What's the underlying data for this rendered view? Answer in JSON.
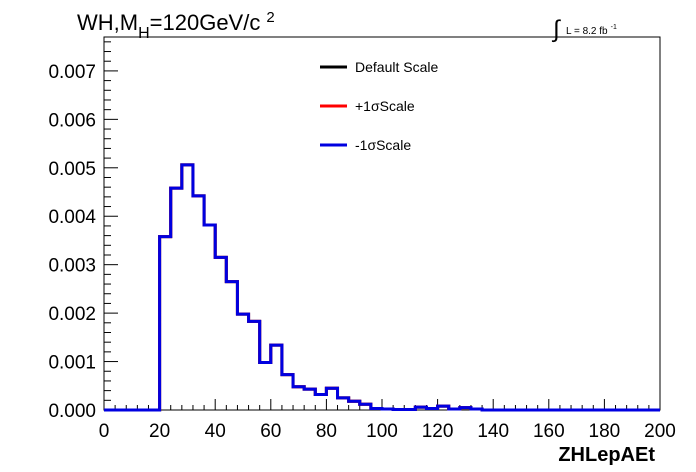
{
  "chart_data": {
    "type": "histogram",
    "title": {
      "main": "WH,M",
      "sub": "H",
      "rest": "=120GeV/c",
      "sup": "2"
    },
    "lumi": {
      "integral_symbol": "∫",
      "text": "L = 8.2 fb",
      "sup": "-1"
    },
    "xlabel": "ZHLepAEt",
    "xlim": [
      0,
      200
    ],
    "ylim": [
      0,
      0.0077
    ],
    "xticks": [
      0,
      20,
      40,
      60,
      80,
      100,
      120,
      140,
      160,
      180,
      200
    ],
    "xtick_labels": [
      "0",
      "20",
      "40",
      "60",
      "80",
      "100",
      "120",
      "140",
      "160",
      "180",
      "200"
    ],
    "yticks": [
      0,
      0.001,
      0.002,
      0.003,
      0.004,
      0.005,
      0.006,
      0.007
    ],
    "ytick_labels": [
      "0.000",
      "0.001",
      "0.002",
      "0.003",
      "0.004",
      "0.005",
      "0.006",
      "0.007"
    ],
    "bin_width": 4,
    "bin_edges_start": 0,
    "legend_placement": "top-center",
    "series": [
      {
        "name": "Default Scale",
        "color": "#000000",
        "values": [
          0,
          0,
          0,
          0,
          0,
          0.00358,
          0.00458,
          0.00506,
          0.00442,
          0.00382,
          0.00315,
          0.00265,
          0.00198,
          0.00183,
          0.00098,
          0.00134,
          0.00073,
          0.00048,
          0.00043,
          0.00032,
          0.00045,
          0.00025,
          0.00018,
          0.00012,
          3e-05,
          2e-05,
          1e-05,
          1e-05,
          6e-05,
          3e-05,
          8e-05,
          2e-05,
          5e-05,
          2e-05,
          0,
          0,
          0,
          0,
          0,
          0,
          0,
          0,
          0,
          0,
          0,
          0,
          0,
          0,
          0,
          0
        ]
      },
      {
        "name": "+1σScale",
        "color": "#ff0000",
        "values": [
          0,
          0,
          0,
          0,
          0,
          0.00358,
          0.00458,
          0.00506,
          0.00442,
          0.00382,
          0.00315,
          0.00265,
          0.00198,
          0.00183,
          0.00098,
          0.00134,
          0.00073,
          0.00048,
          0.00043,
          0.00032,
          0.00045,
          0.00025,
          0.00018,
          0.00012,
          3e-05,
          2e-05,
          1e-05,
          1e-05,
          6e-05,
          3e-05,
          8e-05,
          2e-05,
          5e-05,
          2e-05,
          0,
          0,
          0,
          0,
          0,
          0,
          0,
          0,
          0,
          0,
          0,
          0,
          0,
          0,
          0,
          0
        ]
      },
      {
        "name": "-1σScale",
        "color": "#0000e0",
        "values": [
          0,
          0,
          0,
          0,
          0,
          0.00358,
          0.00458,
          0.00506,
          0.00442,
          0.00382,
          0.00315,
          0.00265,
          0.00198,
          0.00183,
          0.00098,
          0.00134,
          0.00073,
          0.00048,
          0.00043,
          0.00032,
          0.00045,
          0.00025,
          0.00018,
          0.00012,
          3e-05,
          2e-05,
          1e-05,
          1e-05,
          6e-05,
          3e-05,
          8e-05,
          2e-05,
          5e-05,
          2e-05,
          0,
          0,
          0,
          0,
          0,
          0,
          0,
          0,
          0,
          0,
          0,
          0,
          0,
          0,
          0,
          0
        ]
      }
    ]
  }
}
